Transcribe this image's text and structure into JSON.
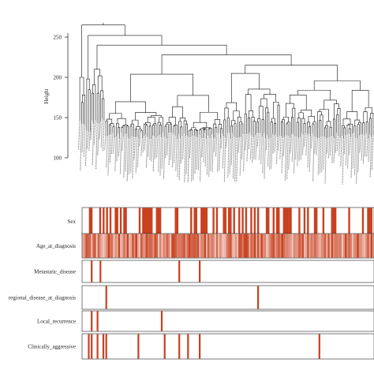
{
  "chart_data": {
    "type": "dendrogram",
    "ylabel": "Height",
    "yticks": [
      100,
      150,
      200,
      250
    ],
    "ylim": [
      88,
      268
    ],
    "n_leaves": 170,
    "leaf_labels_legible": false,
    "accent_color": "#c8401e",
    "tracks": [
      {
        "label": "Sex",
        "kind": "binary"
      },
      {
        "label": "Age_at_diagnosis",
        "kind": "continuous"
      },
      {
        "label": "Metastatic_disease",
        "kind": "binary"
      },
      {
        "label": "regional_disease_at_diagnosis",
        "kind": "binary"
      },
      {
        "label": "Local_recurrence",
        "kind": "binary"
      },
      {
        "label": "Clinically_aggressive",
        "kind": "binary"
      }
    ],
    "track_positive_positions": {
      "Metastatic_disease": [
        0.03,
        0.06,
        0.33,
        0.4
      ],
      "regional_disease_at_diagnosis": [
        0.08,
        0.6
      ],
      "Local_recurrence": [
        0.03,
        0.05,
        0.27
      ],
      "Clinically_aggressive": [
        0.02,
        0.03,
        0.05,
        0.07,
        0.08,
        0.19,
        0.28,
        0.33,
        0.36,
        0.4,
        0.81
      ]
    }
  }
}
